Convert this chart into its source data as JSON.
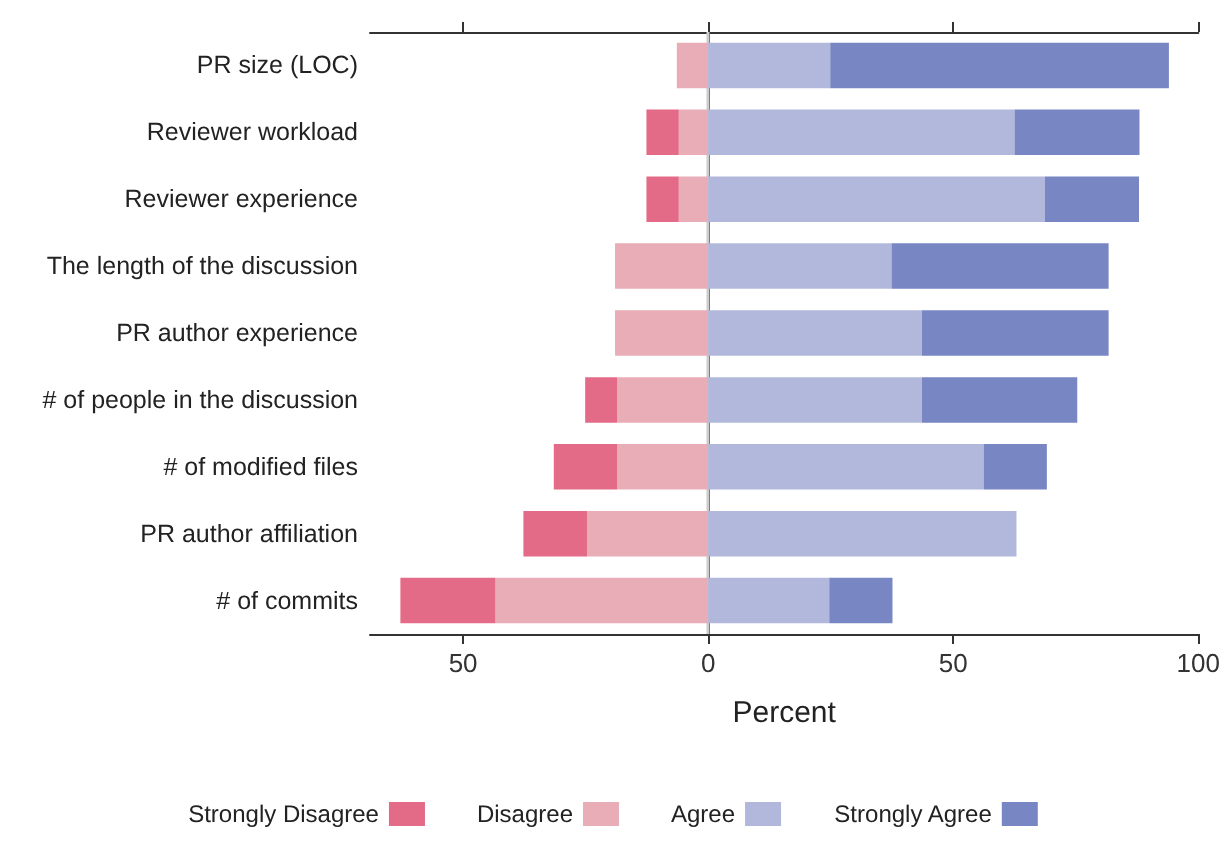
{
  "chart_data": {
    "type": "bar",
    "orientation": "horizontal",
    "stacked": true,
    "xlabel": "Percent",
    "categories": [
      "PR size (LOC)",
      "Reviewer workload",
      "Reviewer experience",
      "The length of the discussion",
      "PR author experience",
      "# of people in the discussion",
      "# of modified files",
      "PR author affiliation",
      "# of commits"
    ],
    "series": [
      {
        "name": "Disagree",
        "color": "#e8adb7",
        "values": [
          -6.4,
          -6,
          -6,
          -19,
          -19,
          -18.6,
          -18.6,
          -24.7,
          -43.4
        ]
      },
      {
        "name": "Strongly Disagree",
        "color": "#e36b87",
        "values": [
          null,
          -6.6,
          -6.6,
          null,
          null,
          -6.5,
          -12.9,
          -13,
          -19.4
        ]
      },
      {
        "name": "Agree",
        "color": "#b2b8dc",
        "values": [
          24.9,
          62.5,
          68.7,
          37.4,
          43.6,
          43.6,
          56.2,
          62.9,
          24.7
        ]
      },
      {
        "name": "Strongly Agree",
        "color": "#7886c3",
        "values": [
          69.1,
          25.5,
          19.2,
          44.3,
          38.1,
          31.7,
          12.9,
          null,
          12.9
        ]
      }
    ],
    "xlim": [
      -69,
      100
    ],
    "xticks": [
      {
        "value": -50,
        "label": "50"
      },
      0,
      50,
      100
    ],
    "ref_lines": [
      {
        "axis": "x",
        "value": 0,
        "color": "#cccccc"
      }
    ],
    "grid": false,
    "legend": "bottom"
  }
}
